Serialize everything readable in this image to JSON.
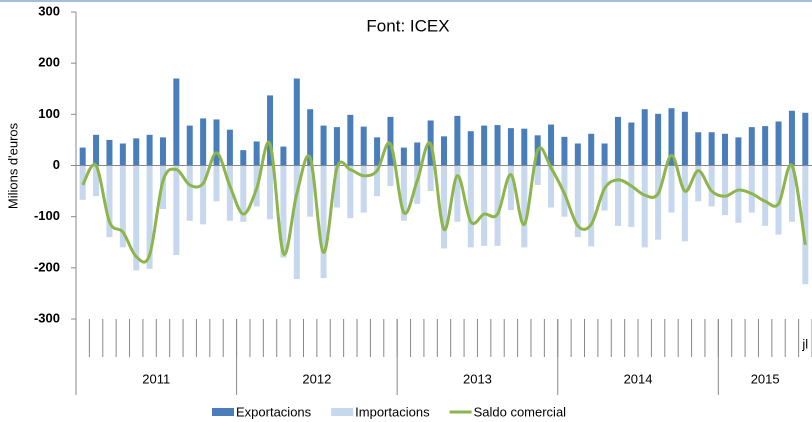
{
  "chart_data": {
    "type": "bar_line",
    "title": "Font: ICEX",
    "y_label": "Milions d'euros",
    "categories": [
      null,
      null,
      null,
      null,
      null,
      null,
      null,
      null,
      null,
      null,
      null,
      null,
      null,
      null,
      null,
      null,
      null,
      null,
      null,
      null,
      null,
      null,
      null,
      null,
      null,
      null,
      null,
      null,
      null,
      null,
      null,
      null,
      null,
      null,
      null,
      null,
      null,
      null,
      null,
      null,
      null,
      null,
      null,
      null,
      null,
      null,
      null,
      null,
      null,
      null,
      null,
      null,
      null,
      null,
      "jl"
    ],
    "x_groups": [
      {
        "label": "2011",
        "size": 12
      },
      {
        "label": "2012",
        "size": 12
      },
      {
        "label": "2013",
        "size": 12
      },
      {
        "label": "2014",
        "size": 12
      },
      {
        "label": "2015",
        "size": 7
      }
    ],
    "series": [
      {
        "name": "Exportacions",
        "kind": "bar",
        "color": "#4a7ebb",
        "values": [
          35,
          60,
          50,
          43,
          53,
          60,
          55,
          170,
          78,
          92,
          90,
          70,
          30,
          47,
          137,
          37,
          170,
          110,
          78,
          75,
          99,
          76,
          55,
          95,
          35,
          45,
          88,
          57,
          97,
          67,
          78,
          79,
          73,
          72,
          59,
          80,
          56,
          43,
          62,
          43,
          95,
          84,
          110,
          101,
          112,
          105,
          65,
          65,
          62,
          55,
          75,
          77,
          86,
          107,
          103
        ]
      },
      {
        "name": "Importacions",
        "kind": "bar",
        "color": "#c6d7ee",
        "values": [
          -67,
          -60,
          -140,
          -160,
          -205,
          -202,
          -85,
          -175,
          -108,
          -115,
          -70,
          -108,
          -110,
          -80,
          -105,
          -180,
          -222,
          -100,
          -220,
          -82,
          -103,
          -92,
          -60,
          -40,
          -108,
          -75,
          -50,
          -162,
          -110,
          -160,
          -157,
          -157,
          -87,
          -160,
          -38,
          -82,
          -100,
          -140,
          -158,
          -88,
          -118,
          -120,
          -160,
          -145,
          -92,
          -148,
          -70,
          -80,
          -97,
          -112,
          -92,
          -118,
          -135,
          -110,
          -232
        ]
      },
      {
        "name": "Saldo comercial",
        "kind": "line",
        "color": "#8db54b",
        "values": [
          -38,
          0,
          -110,
          -130,
          -178,
          -175,
          -30,
          -8,
          -38,
          -35,
          25,
          -40,
          -95,
          -45,
          42,
          -172,
          -55,
          15,
          -170,
          -5,
          -8,
          -20,
          -10,
          42,
          -92,
          -30,
          42,
          -125,
          -20,
          -110,
          -95,
          -95,
          -18,
          -115,
          30,
          -5,
          -55,
          -118,
          -115,
          -45,
          -28,
          -40,
          -58,
          -55,
          20,
          -50,
          -10,
          -50,
          -60,
          -48,
          -55,
          -70,
          -75,
          0,
          -155
        ]
      }
    ],
    "ylim": [
      -300,
      300
    ],
    "yticks": [
      -300,
      -200,
      -100,
      0,
      100,
      200,
      300
    ],
    "grid": false,
    "legend": "bottom"
  }
}
